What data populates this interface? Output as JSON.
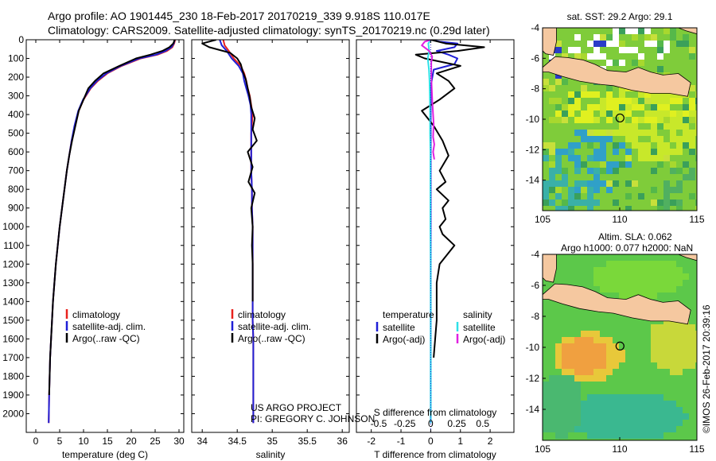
{
  "header": {
    "title_line1": "Argo profile: AO 1901445_230 18-Feb-2017 20170219_339 9.918S 110.017E",
    "title_line2": "Climatology: CARS2009. Satellite-adjusted climatology: synTS_20170219.nc (0.29d later)"
  },
  "stamp": "©IMOS 26-Feb-2017 20:39:16",
  "colors": {
    "climatology": "#e8211d",
    "satellite": "#1f1fd6",
    "argo": "#000000",
    "sat_t_diff": "#2fe0e8",
    "argo_s_diff": "#e020e0",
    "land": "#f5c8a0"
  },
  "chart_data": [
    {
      "type": "line",
      "name": "temperature-panel",
      "xlabel": "temperature (deg C)",
      "ylabel": "",
      "xlim": [
        -2,
        31
      ],
      "ylim": [
        2100,
        0
      ],
      "xticks": [
        0,
        5,
        10,
        15,
        20,
        25,
        30
      ],
      "yticks": [
        0,
        100,
        200,
        300,
        400,
        500,
        600,
        700,
        800,
        900,
        1000,
        1100,
        1200,
        1300,
        1400,
        1500,
        1600,
        1700,
        1800,
        1900,
        2000
      ],
      "legend": {
        "position": "lower-left",
        "entries": [
          "climatology",
          "satellite-adj. clim.",
          "Argo(..raw -QC)"
        ]
      },
      "series": [
        {
          "name": "climatology",
          "color": "#e8211d",
          "x": [
            29.2,
            29.0,
            28.6,
            27.5,
            25.5,
            22.0,
            18.0,
            15.0,
            13.0,
            11.5,
            10.0,
            9.0,
            8.2,
            7.5,
            7.0,
            6.5,
            6.0,
            5.5,
            5.0,
            4.6,
            4.2,
            3.9,
            3.6,
            3.4,
            3.2,
            3.0,
            2.9,
            2.8,
            2.7
          ],
          "y": [
            0,
            20,
            40,
            60,
            80,
            100,
            140,
            180,
            220,
            260,
            320,
            380,
            460,
            540,
            620,
            700,
            800,
            900,
            1000,
            1100,
            1200,
            1300,
            1400,
            1500,
            1600,
            1700,
            1800,
            1900,
            2050
          ]
        },
        {
          "name": "satellite-adj. clim.",
          "color": "#1f1fd6",
          "x": [
            29.1,
            28.9,
            28.4,
            27.2,
            25.2,
            21.7,
            17.8,
            14.8,
            12.8,
            11.4,
            9.9,
            8.9,
            8.1,
            7.5,
            7.0,
            6.5,
            6.0,
            5.5,
            5.0,
            4.6,
            4.2,
            3.9,
            3.6,
            3.4,
            3.2,
            3.0,
            2.9,
            2.8,
            2.7
          ],
          "y": [
            0,
            20,
            40,
            60,
            80,
            100,
            140,
            180,
            220,
            260,
            320,
            380,
            460,
            540,
            620,
            700,
            800,
            900,
            1000,
            1100,
            1200,
            1300,
            1400,
            1500,
            1600,
            1700,
            1800,
            1900,
            2050
          ]
        },
        {
          "name": "Argo(..raw -QC)",
          "color": "#000000",
          "x": [
            29.1,
            28.8,
            28.0,
            26.5,
            24.0,
            21.0,
            17.5,
            14.2,
            12.4,
            11.0,
            10.0,
            9.0,
            8.3,
            7.6,
            7.0,
            6.5,
            6.0,
            5.5,
            5.0,
            4.6,
            4.2,
            3.9,
            3.6,
            3.4,
            3.2,
            3.0,
            2.9,
            2.8
          ],
          "y": [
            0,
            20,
            40,
            60,
            80,
            100,
            140,
            180,
            220,
            260,
            320,
            380,
            460,
            540,
            620,
            700,
            800,
            900,
            1000,
            1100,
            1200,
            1300,
            1400,
            1500,
            1600,
            1700,
            1800,
            1900
          ]
        }
      ]
    },
    {
      "type": "line",
      "name": "salinity-panel",
      "xlabel": "salinity",
      "ylabel": "",
      "xlim": [
        33.85,
        36.1
      ],
      "ylim": [
        2100,
        0
      ],
      "xticks": [
        34,
        34.5,
        35,
        35.5,
        36
      ],
      "legend": {
        "position": "lower-left",
        "entries": [
          "climatology",
          "satellite-adj. clim.",
          "Argo(..raw -QC)"
        ]
      },
      "annotation": [
        "US ARGO PROJECT",
        "PI: GREGORY C. JOHNSON"
      ],
      "series": [
        {
          "name": "climatology",
          "color": "#e8211d",
          "x": [
            34.3,
            34.32,
            34.38,
            34.45,
            34.55,
            34.6,
            34.63,
            34.65,
            34.68,
            34.7,
            34.72,
            34.71,
            34.7,
            34.7,
            34.7,
            34.7,
            34.71,
            34.71,
            34.72,
            34.72,
            34.72,
            34.72,
            34.73,
            34.73,
            34.73,
            34.73,
            34.73
          ],
          "y": [
            0,
            30,
            60,
            100,
            140,
            180,
            220,
            260,
            300,
            350,
            400,
            450,
            500,
            550,
            600,
            700,
            800,
            900,
            1000,
            1200,
            1400,
            1500,
            1600,
            1700,
            1800,
            1900,
            2050
          ]
        },
        {
          "name": "satellite-adj. clim.",
          "color": "#1f1fd6",
          "x": [
            34.25,
            34.28,
            34.35,
            34.42,
            34.52,
            34.58,
            34.6,
            34.63,
            34.66,
            34.69,
            34.7,
            34.7,
            34.7,
            34.7,
            34.7,
            34.7,
            34.71,
            34.71,
            34.72,
            34.72,
            34.72,
            34.72,
            34.73,
            34.73,
            34.73,
            34.73,
            34.73
          ],
          "y": [
            0,
            30,
            60,
            100,
            140,
            180,
            220,
            260,
            300,
            350,
            400,
            450,
            500,
            550,
            600,
            700,
            800,
            900,
            1000,
            1200,
            1400,
            1500,
            1600,
            1700,
            1800,
            1900,
            2050
          ]
        },
        {
          "name": "Argo(..raw -QC)",
          "color": "#000000",
          "x": [
            34.2,
            34.0,
            34.1,
            34.4,
            34.5,
            34.55,
            34.58,
            34.62,
            34.65,
            34.68,
            34.7,
            34.75,
            34.72,
            34.78,
            34.65,
            34.72,
            34.66,
            34.75,
            34.7,
            34.72,
            34.71,
            34.72,
            34.72
          ],
          "y": [
            0,
            20,
            40,
            70,
            100,
            130,
            170,
            210,
            260,
            310,
            360,
            420,
            480,
            540,
            600,
            680,
            760,
            820,
            900,
            1000,
            1100,
            1200,
            1400
          ]
        }
      ]
    },
    {
      "type": "line",
      "name": "difference-panel",
      "xlabel": "T difference from climatology",
      "xlabel_top": "S difference from climatology",
      "xlim": [
        -2.5,
        2.8
      ],
      "ylim": [
        2100,
        0
      ],
      "xticks": [
        -2,
        -1,
        0,
        1,
        2
      ],
      "xticks_top": [
        -0.5,
        -0.25,
        0,
        0.25,
        0.5
      ],
      "legend": {
        "position": "lower",
        "titles": [
          "temperature",
          "salinity"
        ],
        "entries": [
          "satellite",
          "Argo(-adj)",
          "satellite",
          "Argo(-adj)"
        ]
      },
      "series": [
        {
          "name": "temperature satellite",
          "color": "#1f1fd6",
          "x": [
            0.0,
            0.3,
            0.9,
            0.8,
            0.2,
            0.6,
            0.9,
            0.8,
            0.1,
            0.0,
            0.0,
            0.0,
            0.0,
            0.0,
            0.0,
            0.0
          ],
          "y": [
            0,
            10,
            20,
            40,
            60,
            80,
            100,
            130,
            160,
            250,
            400,
            600,
            800,
            1000,
            1500,
            2050
          ]
        },
        {
          "name": "temperature Argo(-adj)",
          "color": "#000000",
          "x": [
            0.0,
            0.5,
            1.8,
            0.9,
            -0.5,
            -0.2,
            1.0,
            0.2,
            0.6,
            0.8,
            0.3,
            -0.3,
            0.1,
            0.4,
            0.6,
            0.3,
            0.5,
            0.2,
            0.6,
            0.4,
            0.5,
            0.3,
            0.4,
            0.8,
            0.3,
            0.2,
            0.2,
            0.1
          ],
          "y": [
            0,
            20,
            40,
            60,
            80,
            100,
            140,
            180,
            220,
            260,
            320,
            380,
            460,
            540,
            620,
            700,
            760,
            800,
            860,
            900,
            960,
            1000,
            1040,
            1100,
            1200,
            1300,
            1500,
            1700
          ]
        },
        {
          "name": "salinity satellite",
          "color": "#2fe0e8",
          "x": [
            0.0,
            -0.08,
            -0.05,
            -0.1,
            -0.06,
            -0.04,
            -0.03,
            -0.02,
            -0.02,
            -0.01,
            -0.01,
            -0.01,
            0.0,
            0.0,
            0.0,
            0.0
          ],
          "y": [
            0,
            20,
            60,
            100,
            160,
            220,
            300,
            400,
            500,
            600,
            800,
            1000,
            1200,
            1500,
            1800,
            2050
          ]
        },
        {
          "name": "salinity Argo(-adj)",
          "color": "#e020e0",
          "x": [
            0.0,
            -0.2,
            -0.3,
            -0.05,
            0.05,
            0.02,
            0.02,
            0.05,
            0.1,
            0.08,
            0.12,
            0.08,
            0.12
          ],
          "y": [
            0,
            10,
            30,
            60,
            90,
            120,
            200,
            320,
            450,
            520,
            560,
            600,
            640
          ]
        }
      ]
    },
    {
      "type": "heatmap",
      "name": "sst-map",
      "title": "sat. SST: 29.2 Argo: 29.1",
      "xlim": [
        105,
        115
      ],
      "ylim": [
        -16,
        -4
      ],
      "xticks": [
        105,
        110,
        115
      ],
      "yticks": [
        -4,
        -6,
        -8,
        -10,
        -12,
        -14
      ],
      "argo_position": {
        "lon": 110.017,
        "lat": -9.918
      }
    },
    {
      "type": "heatmap",
      "name": "sla-map",
      "title_line1": "Altim. SLA: 0.062",
      "title_line2": "Argo h1000: 0.077 h2000: NaN",
      "xlim": [
        105,
        115
      ],
      "ylim": [
        -16,
        -4
      ],
      "xticks": [
        105,
        110,
        115
      ],
      "yticks": [
        -4,
        -6,
        -8,
        -10,
        -12,
        -14
      ],
      "argo_position": {
        "lon": 110.017,
        "lat": -9.918
      }
    }
  ]
}
